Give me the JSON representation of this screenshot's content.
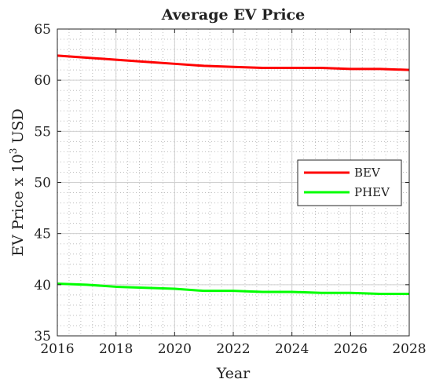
{
  "chart_data": {
    "type": "line",
    "title": "Average EV Price",
    "xlabel": "Year",
    "ylabel_prefix": "EV Price x 10",
    "ylabel_sup": "3",
    "ylabel_suffix": " USD",
    "xlim": [
      2016,
      2028
    ],
    "ylim": [
      35,
      65
    ],
    "xticks": [
      2016,
      2018,
      2020,
      2022,
      2024,
      2026,
      2028
    ],
    "yticks": [
      35,
      40,
      45,
      50,
      55,
      60,
      65
    ],
    "grid": true,
    "minor_grid": true,
    "legend_position": "right",
    "x": [
      2016,
      2017,
      2018,
      2019,
      2020,
      2021,
      2022,
      2023,
      2024,
      2025,
      2026,
      2027,
      2028
    ],
    "series": [
      {
        "name": "BEV",
        "color": "#ff0000",
        "values": [
          62.4,
          62.2,
          62.0,
          61.8,
          61.6,
          61.4,
          61.3,
          61.2,
          61.2,
          61.2,
          61.1,
          61.1,
          61.0
        ]
      },
      {
        "name": "PHEV",
        "color": "#00ff00",
        "values": [
          40.1,
          40.0,
          39.8,
          39.7,
          39.6,
          39.4,
          39.4,
          39.3,
          39.3,
          39.2,
          39.2,
          39.1,
          39.1
        ]
      }
    ]
  }
}
